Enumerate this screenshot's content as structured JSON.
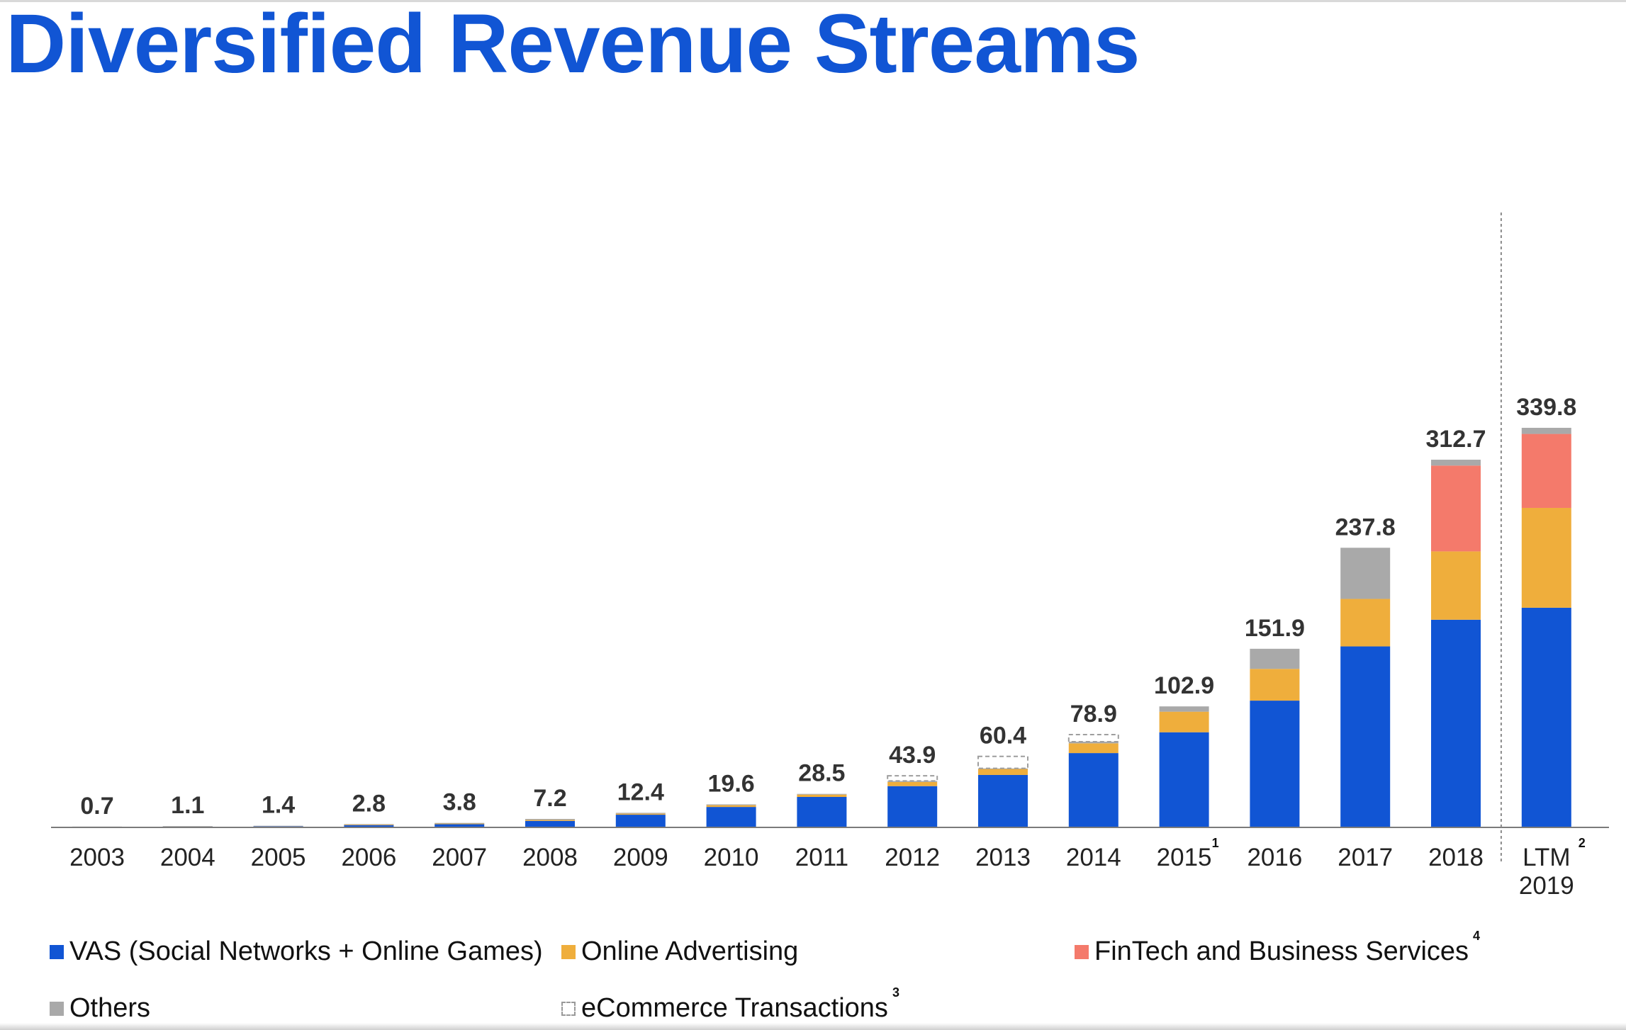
{
  "title": "Diversified Revenue Streams",
  "colors": {
    "vas": "#1155d4",
    "advertising": "#efae3c",
    "fintech": "#f47a6b",
    "others": "#a9a9a9",
    "ecommerce": "#ffffff",
    "title": "#1155d4"
  },
  "chart_data": {
    "type": "bar",
    "stacked": true,
    "title": "Diversified Revenue Streams",
    "categories": [
      "2003",
      "2004",
      "2005",
      "2006",
      "2007",
      "2008",
      "2009",
      "2010",
      "2011",
      "2012",
      "2013",
      "2014",
      "2015",
      "2016",
      "2017",
      "2018",
      "LTM 2019"
    ],
    "category_lines": [
      [
        "2003"
      ],
      [
        "2004"
      ],
      [
        "2005"
      ],
      [
        "2006"
      ],
      [
        "2007"
      ],
      [
        "2008"
      ],
      [
        "2009"
      ],
      [
        "2010"
      ],
      [
        "2011"
      ],
      [
        "2012"
      ],
      [
        "2013"
      ],
      [
        "2014"
      ],
      [
        "2015"
      ],
      [
        "2016"
      ],
      [
        "2017"
      ],
      [
        "2018"
      ],
      [
        "LTM",
        "2019"
      ]
    ],
    "footnotes": {
      "2015": "1",
      "LTM 2019": "2"
    },
    "totals": [
      0.7,
      1.1,
      1.4,
      2.8,
      3.8,
      7.2,
      12.4,
      19.6,
      28.5,
      43.9,
      60.4,
      78.9,
      102.9,
      151.9,
      237.8,
      312.7,
      339.8
    ],
    "total_labels": [
      "0.7",
      "1.1",
      "1.4",
      "2.8",
      "3.8",
      "7.2",
      "12.4",
      "19.6",
      "28.5",
      "43.9",
      "60.4",
      "78.9",
      "102.9",
      "151.9",
      "237.8",
      "312.7",
      "339.8"
    ],
    "series": [
      {
        "key": "vas",
        "name": "VAS (Social Networks + Online Games)",
        "values": [
          0.6,
          0.9,
          1.2,
          2.3,
          3.0,
          5.5,
          10.8,
          17.4,
          25.9,
          35.1,
          44.6,
          63.2,
          80.9,
          107.8,
          153.9,
          176.6,
          186.8
        ]
      },
      {
        "key": "advertising",
        "name": "Online Advertising",
        "values": [
          0.0,
          0.0,
          0.0,
          0.1,
          0.3,
          0.8,
          0.9,
          1.5,
          2.0,
          3.5,
          5.1,
          8.3,
          17.5,
          27.0,
          40.4,
          58.1,
          84.9
        ]
      },
      {
        "key": "fintech",
        "name": "FinTech and Business Services",
        "values": [
          0,
          0,
          0,
          0,
          0,
          0,
          0,
          0,
          0,
          0,
          0,
          0,
          0,
          0,
          0,
          73.0,
          62.9
        ]
      },
      {
        "key": "others",
        "name": "Others",
        "values": [
          0.1,
          0.2,
          0.2,
          0.4,
          0.5,
          0.9,
          0.7,
          0.7,
          0.6,
          0.9,
          0.5,
          1.4,
          4.5,
          17.1,
          43.5,
          5.0,
          5.2
        ]
      },
      {
        "key": "ecommerce",
        "name": "eCommerce Transactions",
        "values": [
          0,
          0,
          0,
          0,
          0,
          0,
          0,
          0,
          0,
          4.4,
          10.2,
          6.0,
          0,
          0,
          0,
          0,
          0
        ]
      }
    ],
    "ylim": [
      0,
      380
    ],
    "xlabel": "",
    "ylabel": "",
    "grid": false,
    "separator_before": "LTM 2019",
    "legend_position": "bottom"
  },
  "legend": {
    "vas": "VAS (Social Networks + Online Games)",
    "advertising": "Online Advertising",
    "fintech": "FinTech and Business Services",
    "fintech_note": "4",
    "others": "Others",
    "ecommerce": "eCommerce Transactions",
    "ecommerce_note": "3"
  }
}
